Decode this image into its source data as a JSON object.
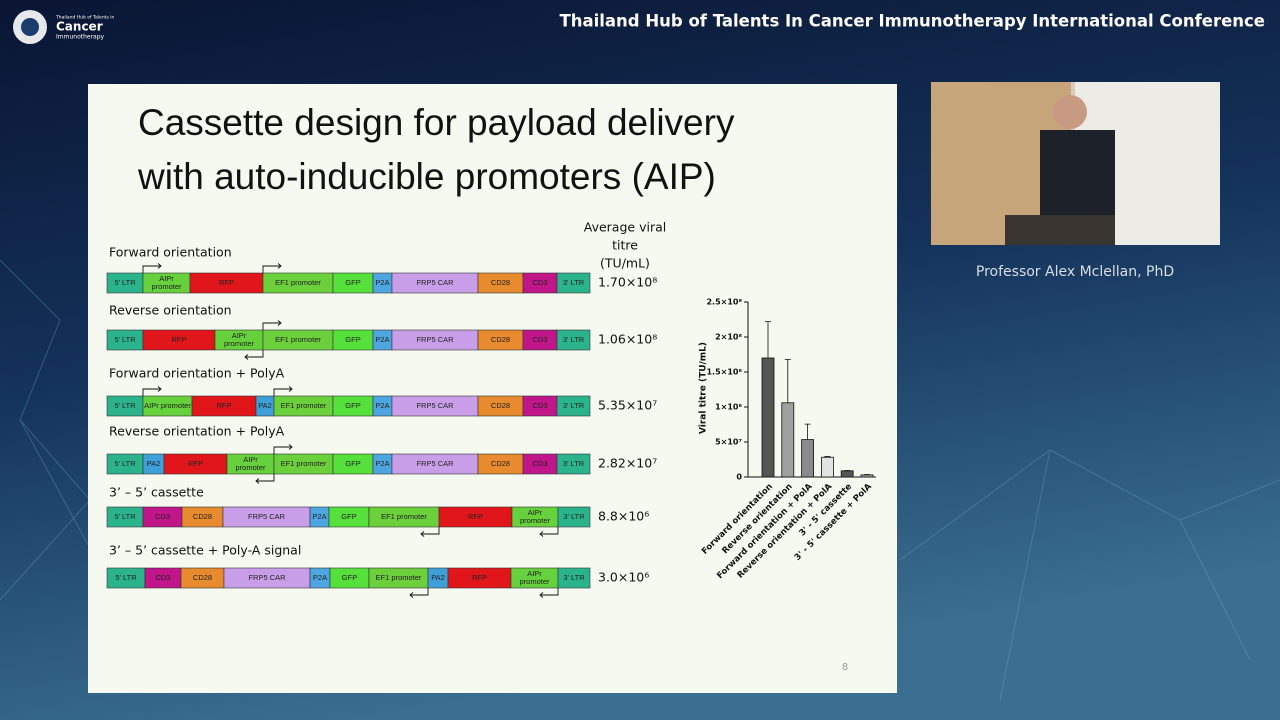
{
  "header": {
    "title": "Thailand Hub of Talents In Cancer Immunotherapy International Conference",
    "logo_top": "Thailand Hub of Talents in",
    "logo_main": "Cancer",
    "logo_sub": "Immunotherapy"
  },
  "slide": {
    "title_line1": "Cassette design for payload delivery",
    "title_line2": "with auto-inducible promoters (AIP)",
    "titre_header": [
      "Average viral",
      "titre",
      "(TU/mL)"
    ],
    "page_number": "8",
    "cassettes": [
      {
        "label": "Forward orientation",
        "titre": "1.70×10⁸",
        "segments": [
          {
            "text": "5' LTR",
            "color": "#2bb38c"
          },
          {
            "text": "AIPr promoter",
            "color": "#66d13c"
          },
          {
            "text": "RFP",
            "color": "#e0161b"
          },
          {
            "text": "EF1 promoter",
            "color": "#6ccf3c"
          },
          {
            "text": "GFP",
            "color": "#55e03c"
          },
          {
            "text": "P2A",
            "color": "#4ea6e0"
          },
          {
            "text": "FRP5 CAR",
            "color": "#c89ee8"
          },
          {
            "text": "CD28",
            "color": "#e88a2e"
          },
          {
            "text": "CD3",
            "color": "#c0168a"
          },
          {
            "text": "3' LTR",
            "color": "#2bb38c"
          }
        ]
      },
      {
        "label": "Reverse orientation",
        "titre": "1.06×10⁸",
        "segments": [
          {
            "text": "5' LTR",
            "color": "#2bb38c"
          },
          {
            "text": "RFP",
            "color": "#e0161b"
          },
          {
            "text": "AIPr promoter",
            "color": "#66d13c"
          },
          {
            "text": "EF1 promoter",
            "color": "#6ccf3c"
          },
          {
            "text": "GFP",
            "color": "#55e03c"
          },
          {
            "text": "P2A",
            "color": "#4ea6e0"
          },
          {
            "text": "FRP5 CAR",
            "color": "#c89ee8"
          },
          {
            "text": "CD28",
            "color": "#e88a2e"
          },
          {
            "text": "CD3",
            "color": "#c0168a"
          },
          {
            "text": "3' LTR",
            "color": "#2bb38c"
          }
        ]
      },
      {
        "label": "Forward orientation + PolyA",
        "titre": "5.35×10⁷",
        "segments": [
          {
            "text": "5' LTR",
            "color": "#2bb38c"
          },
          {
            "text": "AIPr promoter",
            "color": "#66d13c"
          },
          {
            "text": "RFP",
            "color": "#e0161b"
          },
          {
            "text": "PA2",
            "color": "#3fa0d8"
          },
          {
            "text": "EF1 promoter",
            "color": "#6ccf3c"
          },
          {
            "text": "GFP",
            "color": "#55e03c"
          },
          {
            "text": "P2A",
            "color": "#4ea6e0"
          },
          {
            "text": "FRP5 CAR",
            "color": "#c89ee8"
          },
          {
            "text": "CD28",
            "color": "#e88a2e"
          },
          {
            "text": "CD3",
            "color": "#c0168a"
          },
          {
            "text": "3' LTR",
            "color": "#2bb38c"
          }
        ]
      },
      {
        "label": "Reverse orientation + PolyA",
        "titre": "2.82×10⁷",
        "segments": [
          {
            "text": "5' LTR",
            "color": "#2bb38c"
          },
          {
            "text": "PA2",
            "color": "#3fa0d8"
          },
          {
            "text": "RFP",
            "color": "#e0161b"
          },
          {
            "text": "AIPr promoter",
            "color": "#66d13c"
          },
          {
            "text": "EF1 promoter",
            "color": "#6ccf3c"
          },
          {
            "text": "GFP",
            "color": "#55e03c"
          },
          {
            "text": "P2A",
            "color": "#4ea6e0"
          },
          {
            "text": "FRP5 CAR",
            "color": "#c89ee8"
          },
          {
            "text": "CD28",
            "color": "#e88a2e"
          },
          {
            "text": "CD3",
            "color": "#c0168a"
          },
          {
            "text": "3' LTR",
            "color": "#2bb38c"
          }
        ]
      },
      {
        "label": "3’ – 5’ cassette",
        "titre": "8.8×10⁶",
        "segments": [
          {
            "text": "5' LTR",
            "color": "#2bb38c"
          },
          {
            "text": "CD3",
            "color": "#c0168a"
          },
          {
            "text": "CD28",
            "color": "#e88a2e"
          },
          {
            "text": "FRP5 CAR",
            "color": "#c89ee8"
          },
          {
            "text": "P2A",
            "color": "#4ea6e0"
          },
          {
            "text": "GFP",
            "color": "#55e03c"
          },
          {
            "text": "EF1 promoter",
            "color": "#6ccf3c"
          },
          {
            "text": "RFP",
            "color": "#e0161b"
          },
          {
            "text": "AIPr promoter",
            "color": "#66d13c"
          },
          {
            "text": "3' LTR",
            "color": "#2bb38c"
          }
        ]
      },
      {
        "label": "3’ – 5’ cassette + Poly-A signal",
        "titre": "3.0×10⁶",
        "segments": [
          {
            "text": "5' LTR",
            "color": "#2bb38c"
          },
          {
            "text": "CD3",
            "color": "#c0168a"
          },
          {
            "text": "CD28",
            "color": "#e88a2e"
          },
          {
            "text": "FRP5 CAR",
            "color": "#c89ee8"
          },
          {
            "text": "P2A",
            "color": "#4ea6e0"
          },
          {
            "text": "GFP",
            "color": "#55e03c"
          },
          {
            "text": "EF1 promoter",
            "color": "#6ccf3c"
          },
          {
            "text": "PA2",
            "color": "#3fa0d8"
          },
          {
            "text": "RFP",
            "color": "#e0161b"
          },
          {
            "text": "AIPr promoter",
            "color": "#66d13c"
          },
          {
            "text": "3' LTR",
            "color": "#2bb38c"
          }
        ]
      }
    ]
  },
  "speaker": {
    "caption": "Professor Alex Mclellan, PhD"
  },
  "chart_data": {
    "type": "bar",
    "ylabel": "Viral titre (TU/mL)",
    "categories": [
      "Forward orientation",
      "Reverse orientation",
      "Forward orientation + PolA",
      "Reverse orientation + PolA",
      "3' - 5' cassette",
      "3' - 5' cassette + PolA"
    ],
    "values": [
      170000000,
      106000000,
      53500000,
      28200000,
      8800000,
      3000000
    ],
    "errors": [
      52000000,
      62000000,
      22000000,
      1000000,
      500000,
      500000
    ],
    "colors": [
      "#555555",
      "#a0a0a0",
      "#8a8a8a",
      "#e2e2e2",
      "#555555",
      "#a8a8a8"
    ],
    "ylim": [
      0,
      250000000
    ],
    "yticks": [
      0,
      {
        "value": 50000000,
        "label": "5×10⁷"
      },
      {
        "value": 100000000,
        "label": "1×10⁸"
      },
      {
        "value": 150000000,
        "label": "1.5×10⁸"
      },
      {
        "value": 200000000,
        "label": "2×10⁸"
      },
      {
        "value": 250000000,
        "label": "2.5×10⁸"
      }
    ]
  }
}
